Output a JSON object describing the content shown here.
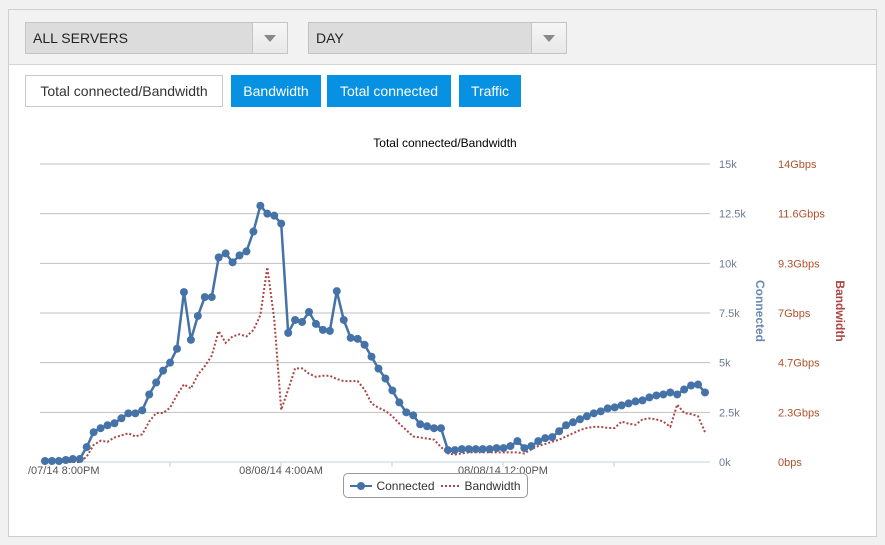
{
  "toolbar": {
    "server_select": "ALL SERVERS",
    "period_select": "DAY"
  },
  "tabs": [
    {
      "label": "Total connected/Bandwidth",
      "active": true
    },
    {
      "label": "Bandwidth"
    },
    {
      "label": "Total connected"
    },
    {
      "label": "Traffic"
    }
  ],
  "colors": {
    "connected": "#4572a7",
    "bandwidth": "#aa4643",
    "tab_blue": "#0791e3"
  },
  "chart_data": {
    "type": "line",
    "title": "Total connected/Bandwidth",
    "x_tick_labels": [
      "/07/14 8:00PM",
      "08/08/14 4:00AM",
      "08/08/14 12:00PM"
    ],
    "x_tick_values": [
      "08/07/14 8:00PM",
      "08/08/14 4:00AM",
      "08/08/14 12:00PM"
    ],
    "x_interval_minutes": 15,
    "x_first": "08/07/14 7:30PM",
    "y_left": {
      "label": "Connected",
      "ticks": [
        "0k",
        "2.5k",
        "5k",
        "7.5k",
        "10k",
        "12.5k",
        "15k"
      ],
      "range": [
        0,
        15000
      ]
    },
    "y_right": {
      "label": "Bandwidth",
      "ticks": [
        "0bps",
        "2.3Gbps",
        "4.7Gbps",
        "7Gbps",
        "9.3Gbps",
        "11.6Gbps",
        "14Gbps"
      ],
      "range_gbps": [
        0,
        14
      ]
    },
    "grid": true,
    "legend": "bottom",
    "series": [
      {
        "name": "Connected",
        "axis": "left",
        "unit": "k",
        "values": [
          0.05,
          0.05,
          0.05,
          0.1,
          0.15,
          0.15,
          0.75,
          1.5,
          1.7,
          1.85,
          1.95,
          2.2,
          2.45,
          2.45,
          2.6,
          3.4,
          4.0,
          4.6,
          5.0,
          5.7,
          8.55,
          6.15,
          7.35,
          8.3,
          8.3,
          10.3,
          10.5,
          10.05,
          10.4,
          10.6,
          11.6,
          12.9,
          12.5,
          12.4,
          12.0,
          6.5,
          7.15,
          7.05,
          7.55,
          6.95,
          6.65,
          6.6,
          8.6,
          7.15,
          6.25,
          6.2,
          5.9,
          5.3,
          4.7,
          4.2,
          3.6,
          3.0,
          2.5,
          2.35,
          1.9,
          1.8,
          1.7,
          1.7,
          0.6,
          0.6,
          0.65,
          0.65,
          0.65,
          0.65,
          0.65,
          0.7,
          0.7,
          0.8,
          1.05,
          0.7,
          0.8,
          1.05,
          1.2,
          1.25,
          1.55,
          1.85,
          2.0,
          2.15,
          2.3,
          2.45,
          2.55,
          2.7,
          2.75,
          2.85,
          2.95,
          3.05,
          3.1,
          3.25,
          3.35,
          3.4,
          3.5,
          3.4,
          3.65,
          3.85,
          3.9,
          3.5
        ]
      },
      {
        "name": "Bandwidth",
        "axis": "right",
        "unit": "Gbps",
        "values": [
          0,
          0,
          0,
          0,
          0,
          0,
          0.25,
          0.8,
          1.0,
          0.95,
          1.15,
          1.25,
          1.35,
          1.2,
          1.3,
          1.9,
          2.3,
          2.3,
          2.55,
          3.15,
          3.65,
          3.45,
          4.1,
          4.5,
          5.0,
          6.15,
          5.6,
          5.9,
          6.0,
          5.9,
          6.2,
          6.9,
          9.15,
          6.7,
          2.45,
          3.4,
          4.4,
          4.4,
          4.15,
          4.0,
          4.05,
          4.05,
          3.9,
          3.8,
          3.8,
          3.8,
          3.4,
          2.75,
          2.55,
          2.4,
          2.15,
          1.8,
          1.5,
          1.2,
          1.15,
          1.1,
          1.05,
          0.7,
          0.4,
          0.35,
          0.4,
          0.45,
          0.45,
          0.45,
          0.45,
          0.45,
          0.45,
          0.45,
          0.45,
          0.4,
          0.6,
          0.75,
          0.85,
          0.95,
          1.05,
          1.2,
          1.35,
          1.5,
          1.6,
          1.65,
          1.65,
          1.6,
          1.6,
          1.9,
          1.8,
          1.75,
          2.0,
          2.05,
          2.0,
          1.9,
          1.65,
          2.7,
          2.3,
          2.25,
          2.15,
          1.4
        ]
      }
    ]
  }
}
